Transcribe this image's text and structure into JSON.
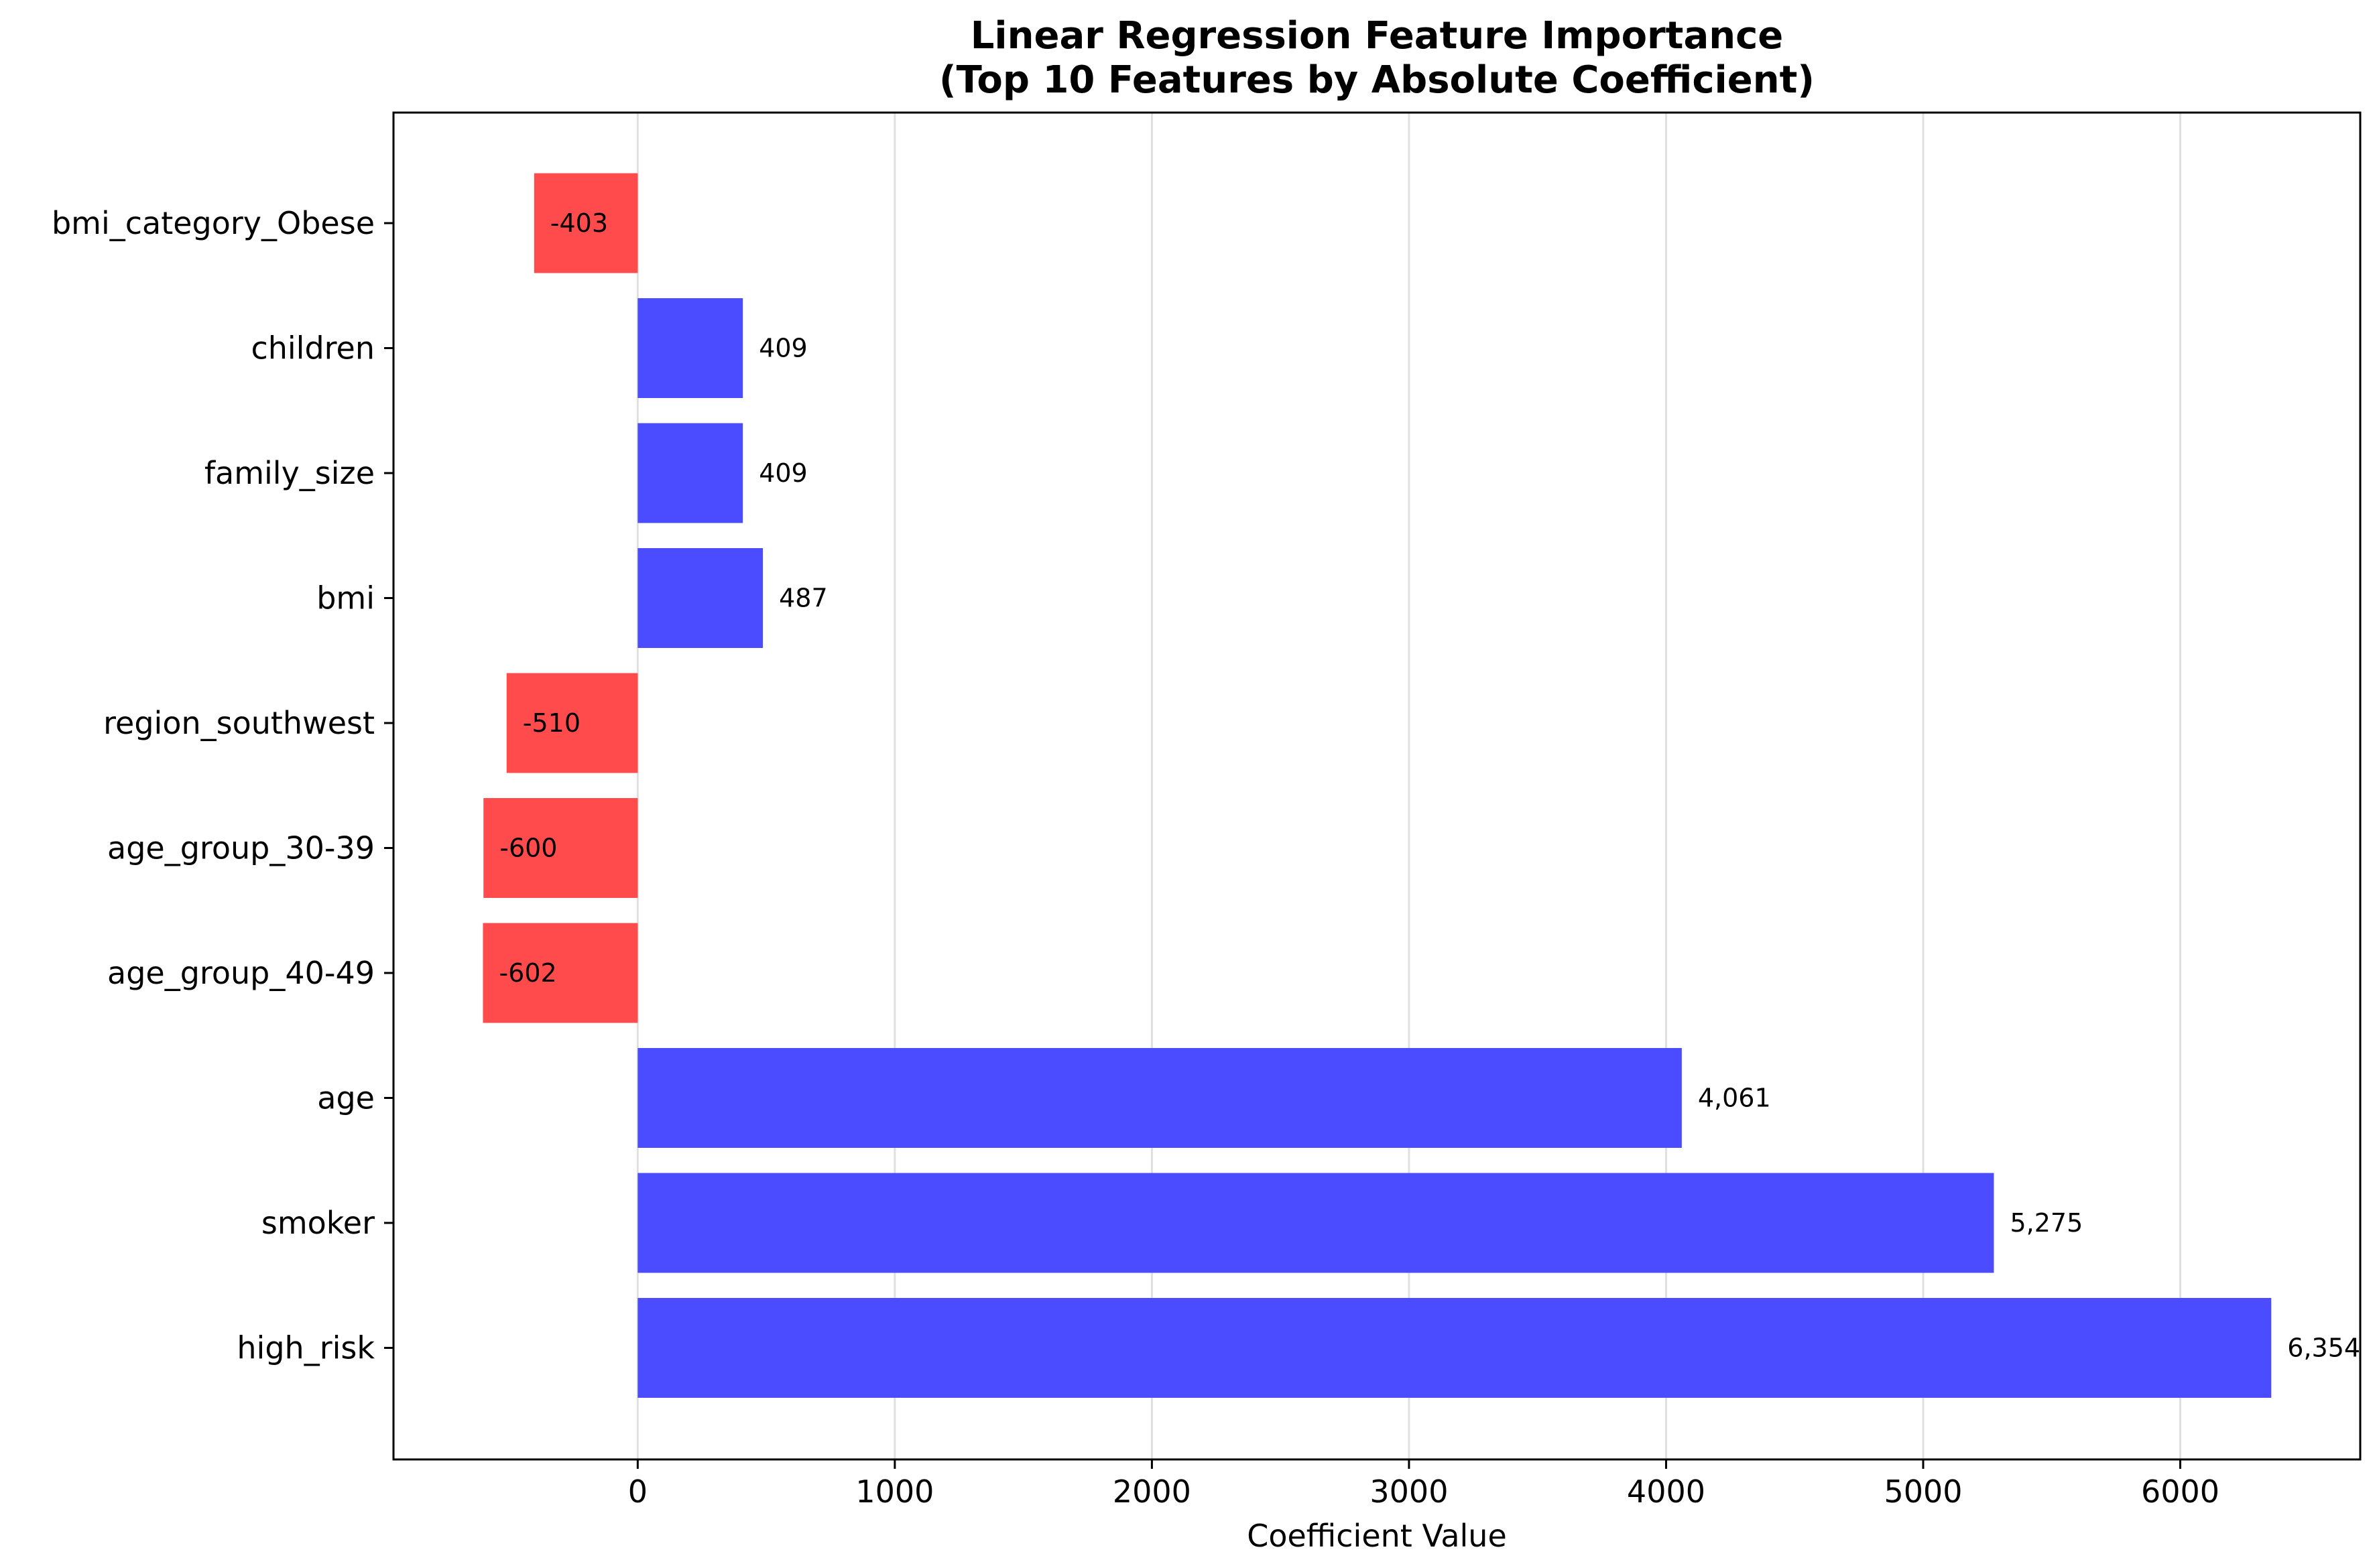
{
  "chart_data": {
    "type": "bar",
    "orientation": "horizontal",
    "title": "Linear Regression Feature Importance",
    "subtitle": "(Top 10 Features by Absolute Coefficient)",
    "xlabel": "Coefficient Value",
    "ylabel": "",
    "xlim": [
      -950,
      6700
    ],
    "xticks": [
      0,
      1000,
      2000,
      3000,
      4000,
      5000,
      6000
    ],
    "xtick_labels": [
      "0",
      "1000",
      "2000",
      "3000",
      "4000",
      "5000",
      "6000"
    ],
    "grid": "x",
    "categories": [
      "bmi_category_Obese",
      "children",
      "family_size",
      "bmi",
      "region_southwest",
      "age_group_30-39",
      "age_group_40-49",
      "age",
      "smoker",
      "high_risk"
    ],
    "values": [
      -403,
      409,
      409,
      487,
      -510,
      -600,
      -602,
      4061,
      5275,
      6354
    ],
    "value_labels": [
      "-403",
      "409",
      "409",
      "487",
      "-510",
      "-600",
      "-602",
      "4,061",
      "5,275",
      "6,354"
    ],
    "colors": {
      "positive": "#4b4bff",
      "negative": "#ff4b4b"
    }
  }
}
